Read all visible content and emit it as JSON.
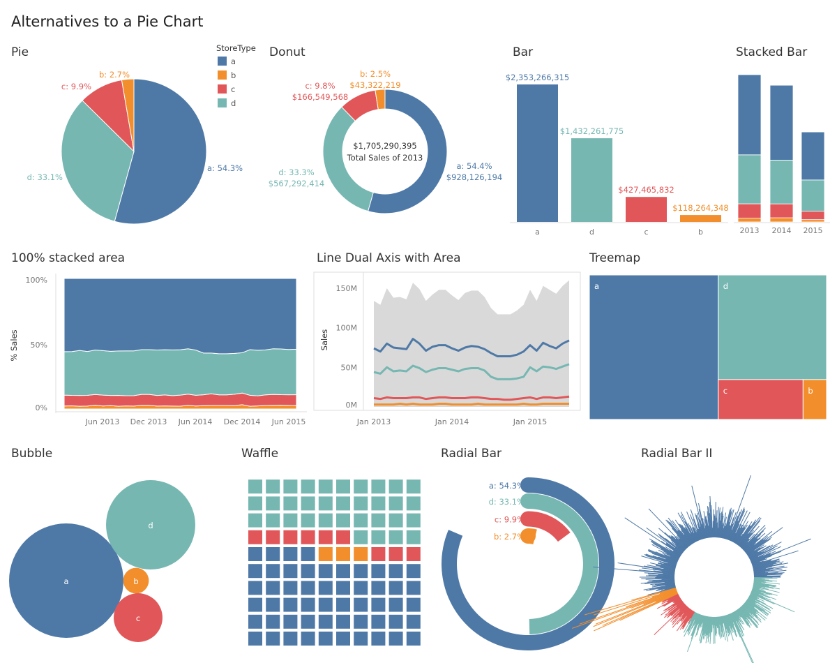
{
  "page_title": "Alternatives to a Pie Chart",
  "colors": {
    "a": "#4e79a7",
    "b": "#f28e2b",
    "c": "#e15759",
    "d": "#76b7b2",
    "total_area": "#d9d9d9"
  },
  "legend": {
    "title": "StoreType",
    "items": [
      "a",
      "b",
      "c",
      "d"
    ]
  },
  "chart_data": [
    {
      "id": "pie",
      "type": "pie",
      "title": "Pie",
      "categories": [
        "a",
        "d",
        "c",
        "b"
      ],
      "values": [
        54.3,
        33.1,
        9.9,
        2.7
      ],
      "labels": [
        "a: 54.3%",
        "d: 33.1%",
        "c: 9.9%",
        "b: 2.7%"
      ]
    },
    {
      "id": "donut",
      "type": "pie",
      "title": "Donut",
      "categories": [
        "a",
        "d",
        "c",
        "b"
      ],
      "values": [
        928126194,
        567292414,
        166549568,
        43322219
      ],
      "labels": [
        [
          "a: 54.4%",
          "$928,126,194"
        ],
        [
          "d: 33.3%",
          "$567,292,414"
        ],
        [
          "c: 9.8%",
          "$166,549,568"
        ],
        [
          "b: 2.5%",
          "$43,322,219"
        ]
      ],
      "center_value": "$1,705,290,395",
      "center_label": "Total Sales of 2013"
    },
    {
      "id": "bar",
      "type": "bar",
      "title": "Bar",
      "categories": [
        "a",
        "d",
        "c",
        "b"
      ],
      "values": [
        2353266315,
        1432261775,
        427465832,
        118264348
      ],
      "labels": [
        "$2,353,266,315",
        "$1,432,261,775",
        "$427,465,832",
        "$118,264,348"
      ]
    },
    {
      "id": "stacked_bar",
      "type": "bar",
      "title": "Stacked Bar",
      "stacked": true,
      "categories": [
        "2013",
        "2014",
        "2015"
      ],
      "series": [
        {
          "name": "b",
          "values": [
            43322219,
            48000000,
            27000000
          ]
        },
        {
          "name": "c",
          "values": [
            166549568,
            161000000,
            97000000
          ]
        },
        {
          "name": "d",
          "values": [
            567292414,
            507000000,
            362000000
          ]
        },
        {
          "name": "a",
          "values": [
            928126194,
            867000000,
            556000000
          ]
        }
      ]
    },
    {
      "id": "area",
      "type": "area",
      "title": "100% stacked area",
      "stack": "percent",
      "ylabel": "% Sales",
      "yticks": [
        "0%",
        "50%",
        "100%"
      ],
      "xticks": [
        "Jun 2013",
        "Dec 2013",
        "Jun 2014",
        "Dec 2014",
        "Jun 2015"
      ],
      "x_range": [
        "Jan 2013",
        "Jul 2015"
      ],
      "series": [
        {
          "name": "b",
          "values": [
            3,
            3,
            3,
            3,
            4,
            3,
            4,
            3,
            3,
            3,
            4,
            4,
            3,
            3,
            3,
            3,
            4,
            3,
            3,
            3,
            3,
            3,
            3,
            4,
            3,
            3,
            4,
            4,
            4,
            4,
            4
          ]
        },
        {
          "name": "c",
          "values": [
            11,
            10,
            12,
            11,
            11,
            11,
            12,
            12,
            10,
            11,
            12,
            12,
            11,
            11,
            11,
            12,
            12,
            11,
            10,
            10,
            9,
            9,
            10,
            11,
            12,
            10,
            12,
            12,
            11,
            12,
            13
          ]
        },
        {
          "name": "d",
          "values": [
            44,
            42,
            50,
            45,
            46,
            45,
            52,
            49,
            44,
            47,
            49,
            49,
            47,
            45,
            48,
            49,
            49,
            46,
            38,
            35,
            35,
            35,
            36,
            38,
            50,
            45,
            51,
            50,
            48,
            51,
            54
          ]
        },
        {
          "name": "a",
          "values": [
            74,
            70,
            80,
            75,
            74,
            73,
            86,
            80,
            71,
            76,
            78,
            78,
            74,
            71,
            75,
            77,
            76,
            73,
            68,
            64,
            64,
            64,
            66,
            70,
            78,
            71,
            81,
            77,
            74,
            80,
            84
          ]
        }
      ]
    },
    {
      "id": "line",
      "type": "line",
      "title": "Line Dual Axis with Area",
      "ylabel": "Sales",
      "yticks": [
        "0M",
        "50M",
        "100M",
        "150M"
      ],
      "ylim": [
        0,
        150
      ],
      "xticks": [
        "Jan 2013",
        "Jan 2014",
        "Jan 2015"
      ],
      "x_range": [
        "Jan 2013",
        "Jul 2015"
      ],
      "area_total": [
        134,
        129,
        150,
        138,
        139,
        136,
        157,
        149,
        134,
        142,
        148,
        148,
        141,
        135,
        144,
        147,
        147,
        139,
        125,
        117,
        117,
        117,
        122,
        129,
        148,
        134,
        153,
        148,
        143,
        153,
        160
      ],
      "series": [
        {
          "name": "a",
          "values": [
            74,
            70,
            80,
            75,
            74,
            73,
            86,
            80,
            71,
            76,
            78,
            78,
            74,
            71,
            75,
            77,
            76,
            73,
            68,
            64,
            64,
            64,
            66,
            70,
            78,
            71,
            81,
            77,
            74,
            80,
            84
          ]
        },
        {
          "name": "d",
          "values": [
            44,
            42,
            50,
            45,
            46,
            45,
            52,
            49,
            44,
            47,
            49,
            49,
            47,
            45,
            48,
            49,
            49,
            46,
            38,
            35,
            35,
            35,
            36,
            38,
            50,
            45,
            51,
            50,
            48,
            51,
            54
          ]
        },
        {
          "name": "c",
          "values": [
            11,
            10,
            12,
            11,
            11,
            11,
            12,
            12,
            10,
            11,
            12,
            12,
            11,
            11,
            11,
            12,
            12,
            11,
            10,
            10,
            9,
            9,
            10,
            11,
            12,
            10,
            12,
            12,
            11,
            12,
            13
          ]
        },
        {
          "name": "b",
          "values": [
            3,
            3,
            3,
            3,
            4,
            3,
            4,
            3,
            3,
            3,
            4,
            4,
            3,
            3,
            3,
            3,
            4,
            3,
            3,
            3,
            3,
            3,
            3,
            4,
            3,
            3,
            4,
            4,
            4,
            4,
            4
          ]
        }
      ]
    },
    {
      "id": "treemap",
      "type": "treemap",
      "title": "Treemap",
      "categories": [
        "a",
        "d",
        "c",
        "b"
      ],
      "values": [
        2353266315,
        1432261775,
        427465832,
        118264348
      ]
    },
    {
      "id": "bubble",
      "type": "bubble",
      "title": "Bubble",
      "categories": [
        "a",
        "d",
        "b",
        "c"
      ],
      "values": [
        2353266315,
        1432261775,
        118264348,
        427465832
      ]
    },
    {
      "id": "waffle",
      "type": "waffle",
      "title": "Waffle",
      "categories": [
        "a",
        "b",
        "c",
        "d"
      ],
      "values": [
        54,
        3,
        9,
        34
      ]
    },
    {
      "id": "radial",
      "type": "radial_bar",
      "title": "Radial Bar",
      "categories": [
        "a",
        "d",
        "c",
        "b"
      ],
      "values": [
        54.3,
        33.1,
        9.9,
        2.7
      ],
      "labels": [
        "a: 54.3%",
        "d: 33.1%",
        "c: 9.9%",
        "b: 2.7%"
      ]
    },
    {
      "id": "radial2",
      "type": "radial_bar",
      "title": "Radial Bar II",
      "categories": [
        "a",
        "b",
        "c",
        "d"
      ],
      "values": [
        54.3,
        2.7,
        9.9,
        33.1
      ]
    }
  ]
}
